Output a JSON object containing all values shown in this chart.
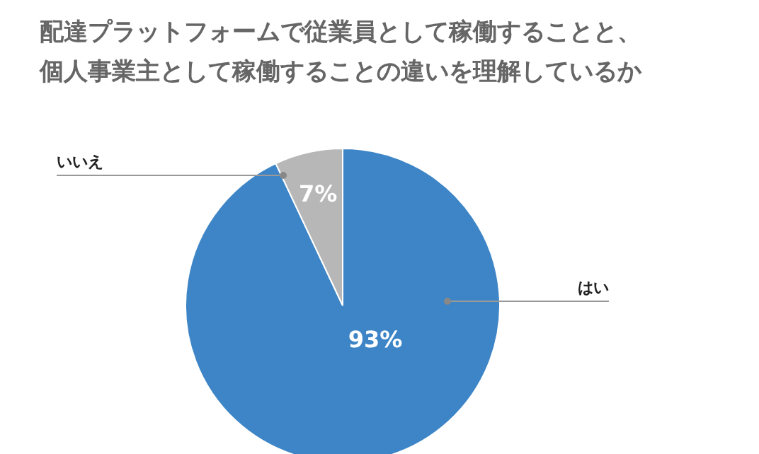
{
  "chart_data": {
    "type": "pie",
    "title": "配達プラットフォームで従業員として稼働することと、個人事業主として稼働することの違いを理解しているか",
    "categories": [
      "はい",
      "いいえ"
    ],
    "values": [
      93,
      7
    ],
    "colors": [
      "#3d85c6",
      "#b7b7b7"
    ],
    "value_labels": [
      "93%",
      "7%"
    ]
  }
}
